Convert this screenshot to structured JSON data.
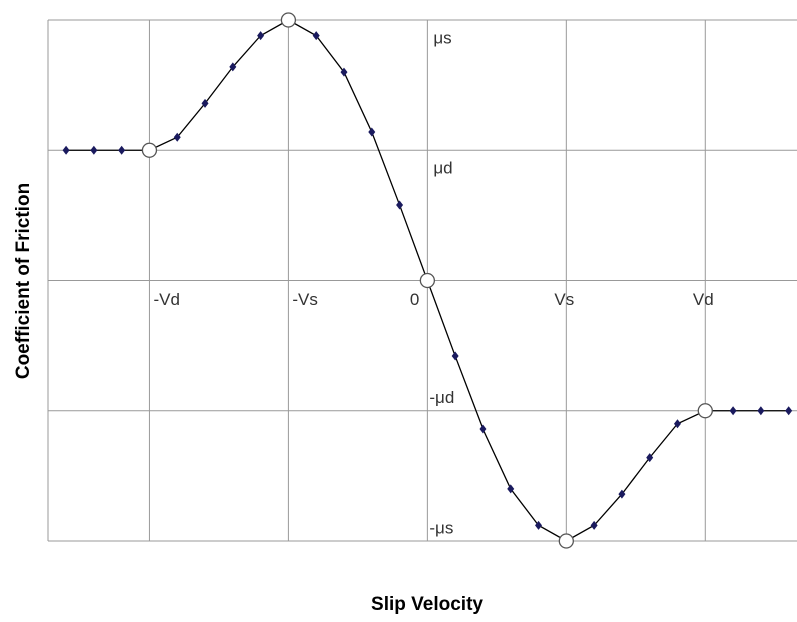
{
  "chart_data": {
    "type": "line",
    "x_label": "Slip Velocity",
    "y_label": "Coefficient of Friction",
    "xlim": [
      -2.73,
      2.66
    ],
    "ylim": [
      -2,
      2
    ],
    "xticks": [
      {
        "value": -2,
        "label": "-Vd"
      },
      {
        "value": -1,
        "label": "-Vs"
      },
      0,
      {
        "value": 1,
        "label": "Vs"
      },
      {
        "value": 2,
        "label": "Vd"
      }
    ],
    "yticks": [
      {
        "value": 2,
        "label": "μs"
      },
      {
        "value": 1,
        "label": "μd"
      },
      {
        "value": 0,
        "label": ""
      },
      {
        "value": -1,
        "label": "-μd"
      },
      {
        "value": -2,
        "label": "-μs"
      }
    ],
    "grid": true,
    "line_color": "#000000",
    "marker_color": "#1a1a5e",
    "x": [
      -2.6,
      -2.4,
      -2.2,
      -2.0,
      -1.8,
      -1.6,
      -1.4,
      -1.2,
      -1.0,
      -0.8,
      -0.6,
      -0.4,
      -0.2,
      0,
      0.2,
      0.4,
      0.6,
      0.8,
      1.0,
      1.2,
      1.4,
      1.6,
      1.8,
      2.0,
      2.2,
      2.4,
      2.6
    ],
    "values": [
      1,
      1,
      1,
      1,
      1.1,
      1.36,
      1.64,
      1.88,
      2,
      1.88,
      1.6,
      1.14,
      0.58,
      0,
      -0.58,
      -1.14,
      -1.6,
      -1.88,
      -2,
      -1.88,
      -1.64,
      -1.36,
      -1.1,
      -1,
      -1,
      -1,
      -1
    ],
    "markers": [
      "diamond",
      "diamond",
      "diamond",
      "circle",
      "diamond",
      "diamond",
      "diamond",
      "diamond",
      "circle",
      "diamond",
      "diamond",
      "diamond",
      "diamond",
      "circle",
      "diamond",
      "diamond",
      "diamond",
      "diamond",
      "circle",
      "diamond",
      "diamond",
      "diamond",
      "diamond",
      "circle",
      "diamond",
      "diamond",
      "diamond"
    ]
  }
}
